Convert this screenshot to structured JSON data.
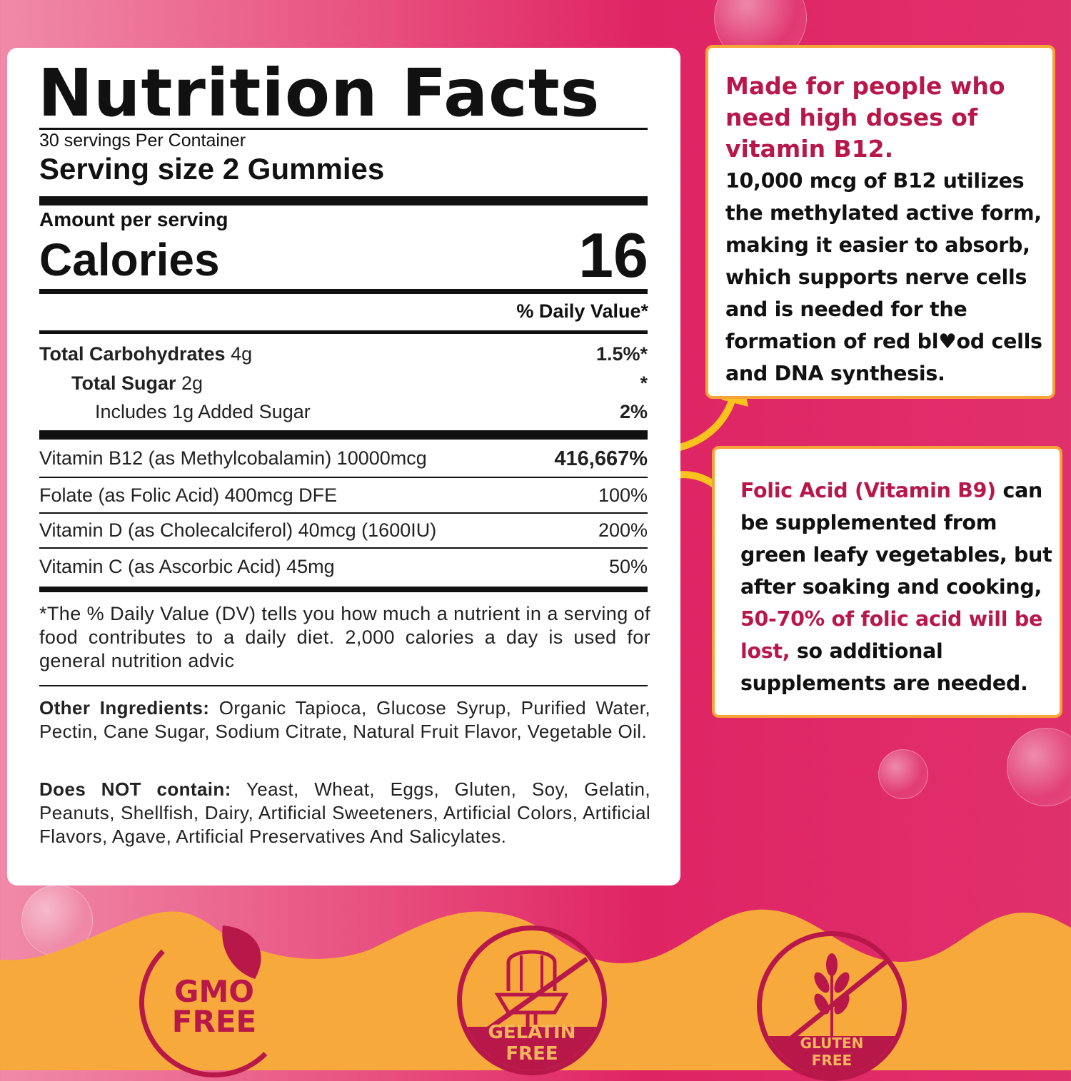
{
  "colors": {
    "accent_red": "#b8174a",
    "box_border": "#f5a437",
    "pink_bg": "#df2464",
    "orange_bg": "#f7a93b"
  },
  "label": {
    "title": "Nutrition Facts",
    "servings": "30 servings Per Container",
    "serving_size": "Serving size 2 Gummies",
    "amount_per_serving": "Amount per serving",
    "calories_label": "Calories",
    "calories_value": "16",
    "daily_value_header": "% Daily Value*",
    "macros": [
      {
        "name": "Total Carbohydrates",
        "amount": "4g",
        "dv": "1.5%*"
      },
      {
        "name": "Total Sugar",
        "amount": "2g",
        "dv": "*"
      },
      {
        "name": "Includes 1g Added Sugar",
        "amount": "",
        "dv": "2%"
      }
    ],
    "vitamins": [
      {
        "name": "Vitamin B12 (as Methylcobalamin) 10000mcg",
        "dv": "416,667%"
      },
      {
        "name": "Folate (as Folic Acid)  400mcg DFE",
        "dv": "100%"
      },
      {
        "name": "Vitamin D (as Cholecalciferol)  40mcg (1600IU)",
        "dv": "200%"
      },
      {
        "name": "Vitamin C (as Ascorbic Acid)  45mg",
        "dv": "50%"
      }
    ],
    "footnote": "*The % Daily Value (DV) tells you how much a nutrient in a serving of food contributes to a daily diet. 2,000 calories a day is used for general nutrition advic",
    "other_ingredients_label": "Other Ingredients:",
    "other_ingredients": " Organic Tapioca, Glucose Syrup, Purified Water, Pectin, Cane Sugar, Sodium Citrate, Natural Fruit Flavor, Vegetable Oil.",
    "does_not_contain_label": "Does NOT contain:",
    "does_not_contain": " Yeast, Wheat, Eggs, Gluten, Soy, Gelatin, Peanuts, Shellfish, Dairy, Artificial Sweeteners, Artificial Colors,  Artificial Flavors, Agave, Artificial Preservatives And Salicylates."
  },
  "callout_b12": {
    "heading": "Made for people who need high doses of vitamin B12.",
    "body": "10,000 mcg of B12 utilizes the methylated active form, making it easier to absorb, which supports nerve cells and is needed for the formation of red bl♥od cells and DNA synthesis."
  },
  "callout_folic": {
    "heading": "Folic Acid (Vitamin B9)",
    "body1": " can be supplemented from green leafy vegetables, but after soaking and cooking, ",
    "highlight": "50-70% of folic acid will be lost,",
    "body2": " so additional supplements are needed."
  },
  "badges": [
    {
      "line1": "GMO",
      "line2": "FREE",
      "icon": "leaf-icon"
    },
    {
      "line1": "GELATIN",
      "line2": "FREE",
      "icon": "jelly-icon"
    },
    {
      "line1": "GLUTEN",
      "line2": "FREE",
      "icon": "wheat-icon"
    }
  ]
}
